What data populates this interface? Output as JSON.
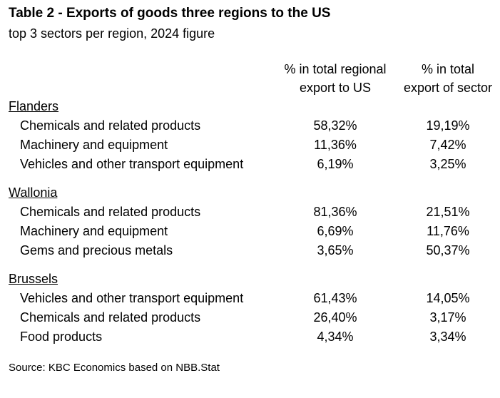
{
  "title": "Table 2 - Exports of goods three regions to the US",
  "subtitle": "top 3 sectors per region, 2024 figure",
  "columns": [
    {
      "line1": "% in total regional",
      "line2": "export to US"
    },
    {
      "line1": "% in total",
      "line2": "export of sector"
    }
  ],
  "chart_data": {
    "type": "table",
    "columns": [
      "% in total regional export to US",
      "% in total export of sector"
    ],
    "regions": [
      {
        "name": "Flanders",
        "rows": [
          {
            "sector": "Chemicals and related products",
            "share_regional": "58,32%",
            "share_sector": "19,19%"
          },
          {
            "sector": "Machinery and equipment",
            "share_regional": "11,36%",
            "share_sector": "7,42%"
          },
          {
            "sector": "Vehicles and other transport equipment",
            "share_regional": "6,19%",
            "share_sector": "3,25%"
          }
        ]
      },
      {
        "name": "Wallonia",
        "rows": [
          {
            "sector": "Chemicals and related products",
            "share_regional": "81,36%",
            "share_sector": "21,51%"
          },
          {
            "sector": "Machinery and equipment",
            "share_regional": "6,69%",
            "share_sector": "11,76%"
          },
          {
            "sector": "Gems and precious metals",
            "share_regional": "3,65%",
            "share_sector": "50,37%"
          }
        ]
      },
      {
        "name": "Brussels",
        "rows": [
          {
            "sector": "Vehicles and other transport equipment",
            "share_regional": "61,43%",
            "share_sector": "14,05%"
          },
          {
            "sector": "Chemicals and related products",
            "share_regional": "26,40%",
            "share_sector": "3,17%"
          },
          {
            "sector": "Food products",
            "share_regional": "4,34%",
            "share_sector": "3,34%"
          }
        ]
      }
    ]
  },
  "source": "Source: KBC Economics based on NBB.Stat"
}
